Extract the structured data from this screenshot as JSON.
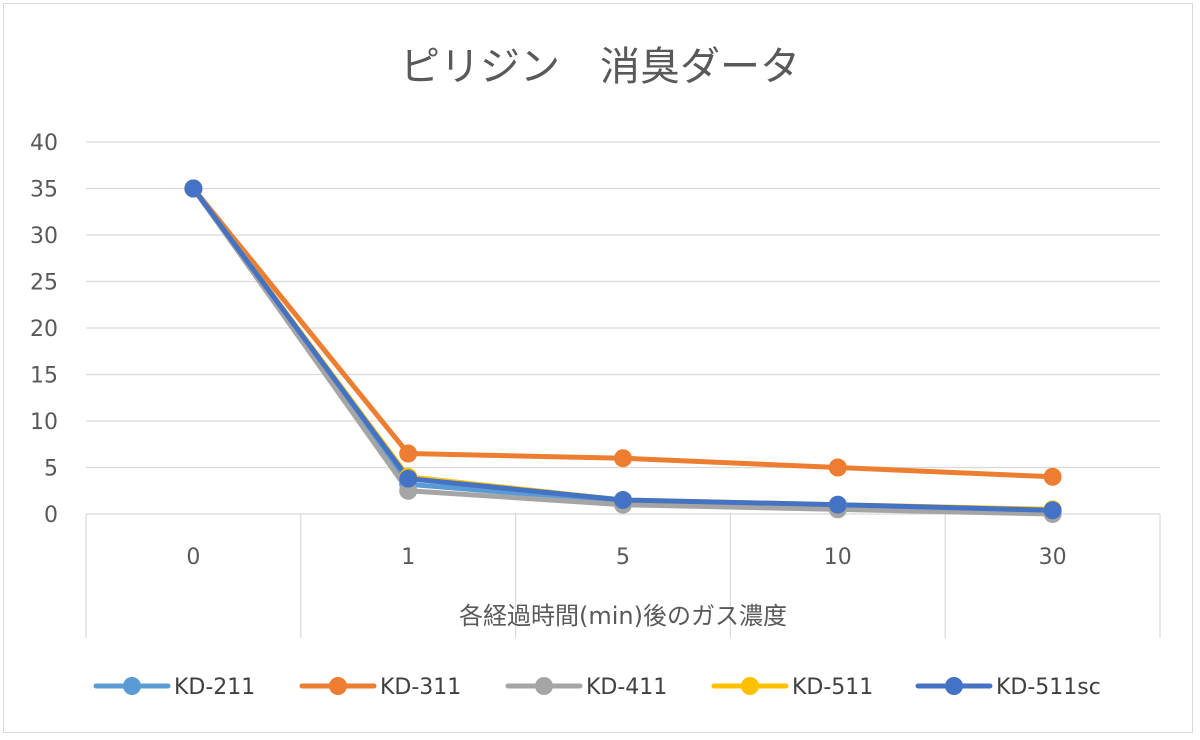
{
  "chart_data": {
    "type": "line",
    "title": "ピリジン　消臭ダータ",
    "xlabel": "各経過時間(min)後のガス濃度",
    "ylabel": "",
    "categories": [
      "0",
      "1",
      "5",
      "10",
      "30"
    ],
    "ylim": [
      0,
      40
    ],
    "yticks": [
      0,
      5,
      10,
      15,
      20,
      25,
      30,
      35,
      40
    ],
    "grid": true,
    "legend_position": "bottom",
    "series": [
      {
        "name": "KD-211",
        "color": "#5b9bd5",
        "values": [
          35,
          3.2,
          1.3,
          0.8,
          0.2
        ]
      },
      {
        "name": "KD-311",
        "color": "#ed7d31",
        "values": [
          35,
          6.5,
          6,
          5,
          4
        ]
      },
      {
        "name": "KD-411",
        "color": "#a5a5a5",
        "values": [
          35,
          2.5,
          1,
          0.5,
          0
        ]
      },
      {
        "name": "KD-511",
        "color": "#ffc000",
        "values": [
          35,
          4,
          1.5,
          1,
          0.5
        ]
      },
      {
        "name": "KD-511sc",
        "color": "#4472c4",
        "values": [
          35,
          3.8,
          1.5,
          1,
          0.4
        ]
      }
    ]
  }
}
